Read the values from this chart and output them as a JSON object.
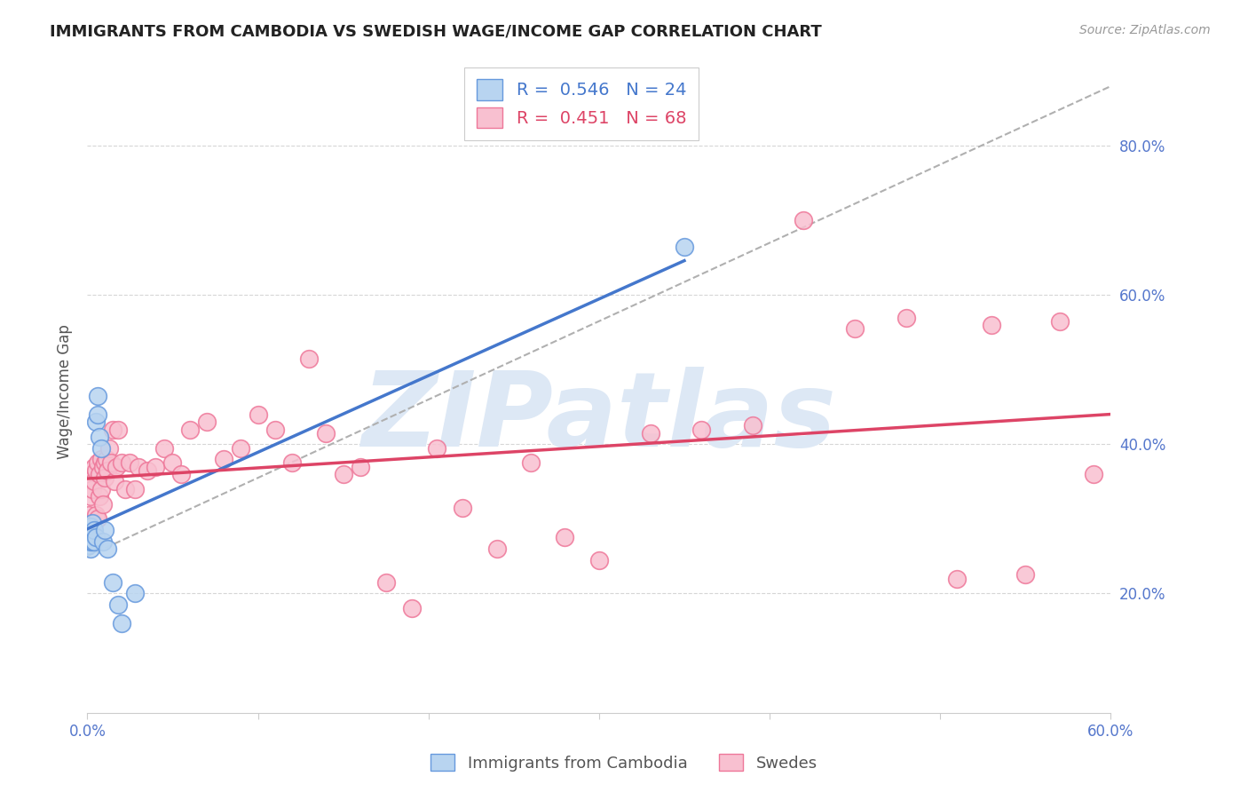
{
  "title": "IMMIGRANTS FROM CAMBODIA VS SWEDISH WAGE/INCOME GAP CORRELATION CHART",
  "source": "Source: ZipAtlas.com",
  "ylabel": "Wage/Income Gap",
  "xlim": [
    0.0,
    0.6
  ],
  "ylim": [
    0.04,
    0.9
  ],
  "yticks": [
    0.2,
    0.4,
    0.6,
    0.8
  ],
  "xticks": [
    0.0,
    0.1,
    0.2,
    0.3,
    0.4,
    0.5,
    0.6
  ],
  "xtick_labels": [
    "0.0%",
    "",
    "",
    "",
    "",
    "",
    "60.0%"
  ],
  "ytick_labels": [
    "20.0%",
    "40.0%",
    "60.0%",
    "80.0%"
  ],
  "blue_R": "0.546",
  "blue_N": "24",
  "pink_R": "0.451",
  "pink_N": "68",
  "blue_fill_color": "#b8d4f0",
  "pink_fill_color": "#f8c0d0",
  "blue_edge_color": "#6699dd",
  "pink_edge_color": "#ee7799",
  "blue_line_color": "#4477cc",
  "pink_line_color": "#dd4466",
  "watermark": "ZIPatlas",
  "watermark_color": "#dde8f5",
  "background_color": "#ffffff",
  "grid_color": "#cccccc",
  "title_color": "#222222",
  "tick_label_color": "#5577cc",
  "ylabel_color": "#555555",
  "source_color": "#999999",
  "blue_x": [
    0.001,
    0.001,
    0.002,
    0.002,
    0.002,
    0.003,
    0.003,
    0.003,
    0.004,
    0.004,
    0.005,
    0.005,
    0.006,
    0.006,
    0.007,
    0.008,
    0.009,
    0.01,
    0.012,
    0.015,
    0.018,
    0.02,
    0.028,
    0.35
  ],
  "blue_y": [
    0.265,
    0.275,
    0.26,
    0.27,
    0.29,
    0.27,
    0.28,
    0.295,
    0.27,
    0.285,
    0.275,
    0.43,
    0.465,
    0.44,
    0.41,
    0.395,
    0.27,
    0.285,
    0.26,
    0.215,
    0.185,
    0.16,
    0.2,
    0.665
  ],
  "pink_x": [
    0.001,
    0.002,
    0.002,
    0.003,
    0.003,
    0.004,
    0.004,
    0.004,
    0.005,
    0.005,
    0.006,
    0.006,
    0.007,
    0.007,
    0.008,
    0.008,
    0.009,
    0.009,
    0.01,
    0.01,
    0.011,
    0.012,
    0.013,
    0.014,
    0.015,
    0.016,
    0.017,
    0.018,
    0.02,
    0.022,
    0.025,
    0.028,
    0.03,
    0.035,
    0.04,
    0.045,
    0.05,
    0.055,
    0.06,
    0.07,
    0.08,
    0.09,
    0.1,
    0.11,
    0.12,
    0.13,
    0.14,
    0.15,
    0.16,
    0.175,
    0.19,
    0.205,
    0.22,
    0.24,
    0.26,
    0.28,
    0.3,
    0.33,
    0.36,
    0.39,
    0.42,
    0.45,
    0.48,
    0.51,
    0.53,
    0.55,
    0.57,
    0.59
  ],
  "pink_y": [
    0.305,
    0.33,
    0.355,
    0.285,
    0.34,
    0.295,
    0.35,
    0.37,
    0.305,
    0.365,
    0.375,
    0.3,
    0.36,
    0.33,
    0.38,
    0.34,
    0.32,
    0.37,
    0.375,
    0.355,
    0.38,
    0.365,
    0.395,
    0.375,
    0.42,
    0.35,
    0.37,
    0.42,
    0.375,
    0.34,
    0.375,
    0.34,
    0.37,
    0.365,
    0.37,
    0.395,
    0.375,
    0.36,
    0.42,
    0.43,
    0.38,
    0.395,
    0.44,
    0.42,
    0.375,
    0.515,
    0.415,
    0.36,
    0.37,
    0.215,
    0.18,
    0.395,
    0.315,
    0.26,
    0.375,
    0.275,
    0.245,
    0.415,
    0.42,
    0.425,
    0.7,
    0.555,
    0.57,
    0.22,
    0.56,
    0.225,
    0.565,
    0.36
  ],
  "ref_line": [
    [
      0.0,
      0.25
    ],
    [
      0.6,
      0.88
    ]
  ]
}
